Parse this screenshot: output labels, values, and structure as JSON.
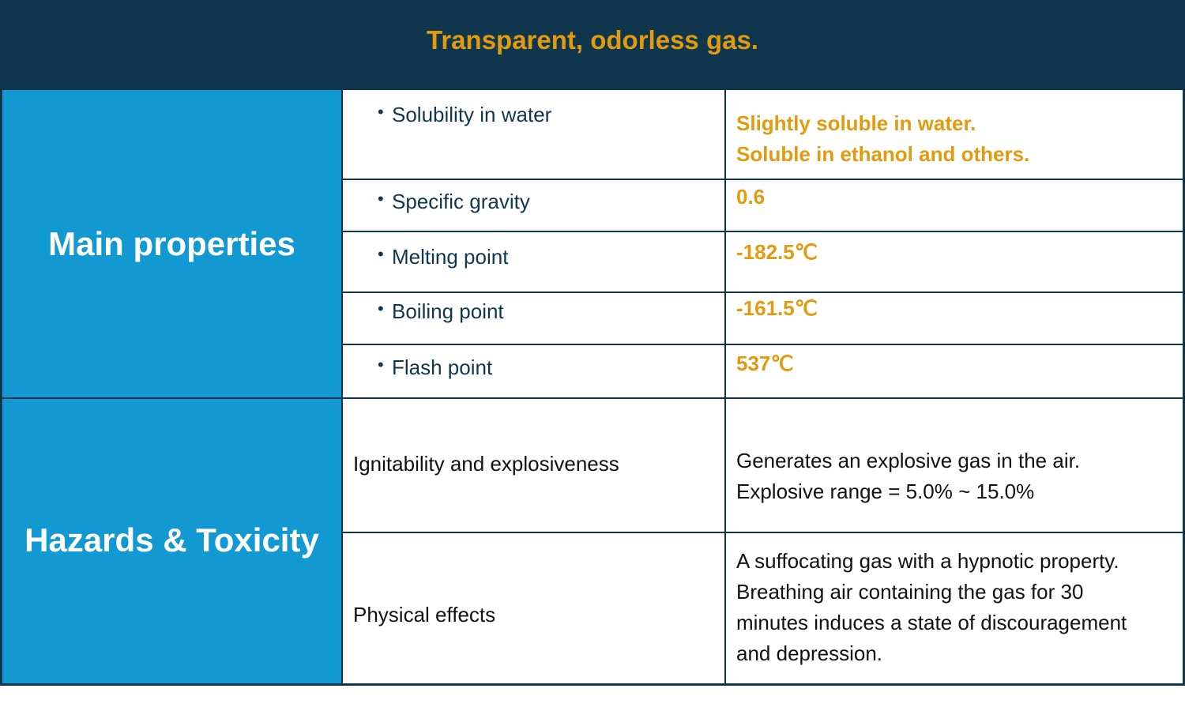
{
  "header": {
    "title": "Transparent, odorless gas."
  },
  "main_properties": {
    "label": "Main properties",
    "rows": [
      {
        "property": "Solubility in water",
        "value_lines": [
          "Slightly soluble in water.",
          "Soluble in ethanol and others."
        ]
      },
      {
        "property": "Specific gravity",
        "value_lines": [
          "0.6"
        ]
      },
      {
        "property": "Melting point",
        "value_lines": [
          "-182.5℃"
        ]
      },
      {
        "property": "Boiling point",
        "value_lines": [
          "-161.5℃"
        ]
      },
      {
        "property": "Flash point",
        "value_lines": [
          "537℃"
        ]
      }
    ]
  },
  "hazards": {
    "label": "Hazards & Toxicity",
    "rows": [
      {
        "property": "Ignitability and explosiveness",
        "value_lines": [
          "Generates an explosive gas in the air.",
          "Explosive range = 5.0% ~ 15.0%"
        ]
      },
      {
        "property": "Physical effects",
        "value_lines": [
          "A suffocating gas with a hypnotic property.",
          "Breathing air containing the gas for 30",
          "minutes induces a state of discouragement",
          "and depression."
        ]
      }
    ]
  },
  "bullet_glyph": "•",
  "colors": {
    "navy": "#10364d",
    "blue": "#1399d1",
    "orange": "#e29a0f"
  }
}
